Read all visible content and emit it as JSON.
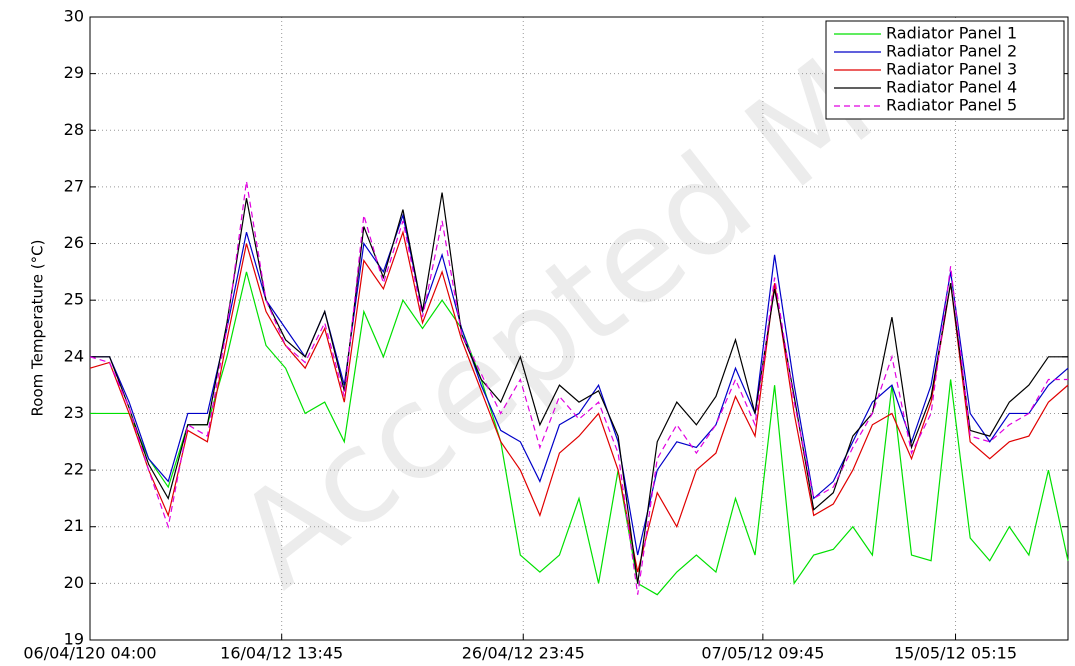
{
  "chart_data": {
    "type": "line",
    "ylabel": "Room Temperature (°C)",
    "watermark": "Accepted M",
    "x": [
      0,
      20,
      40,
      60,
      80,
      100,
      120,
      140,
      160,
      180,
      200,
      220,
      240,
      260,
      280,
      300,
      320,
      340,
      360,
      380,
      400,
      420,
      440,
      460,
      480,
      500,
      520,
      540,
      560,
      580,
      600,
      620,
      640,
      660,
      680,
      700,
      720,
      740,
      760,
      780,
      800,
      820,
      840,
      860,
      880,
      900,
      920,
      940,
      960,
      980,
      1000
    ],
    "xlim": [
      0,
      1000
    ],
    "xticks": [
      {
        "value": 0,
        "label": "06/04/120 04:00"
      },
      {
        "value": 196,
        "label": "16/04/12 13:45"
      },
      {
        "value": 443,
        "label": "26/04/12 23:45"
      },
      {
        "value": 688,
        "label": "07/05/12 09:45"
      },
      {
        "value": 885,
        "label": "15/05/12 05:15"
      }
    ],
    "ylim": [
      19,
      30
    ],
    "yticks": [
      19,
      20,
      21,
      22,
      23,
      24,
      25,
      26,
      27,
      28,
      29,
      30
    ],
    "grid": true,
    "legend": "top-right",
    "series": [
      {
        "name": "Radiator Panel 1",
        "color": "#00e000",
        "dash": false,
        "values": [
          23.0,
          23.0,
          23.0,
          22.2,
          21.7,
          22.8,
          22.8,
          24.0,
          25.5,
          24.2,
          23.8,
          23.0,
          23.2,
          22.5,
          24.8,
          24.0,
          25.0,
          24.5,
          25.0,
          24.5,
          23.6,
          22.5,
          20.5,
          20.2,
          20.5,
          21.5,
          20.0,
          22.0,
          20.0,
          19.8,
          20.2,
          20.5,
          20.2,
          21.5,
          20.5,
          23.5,
          20.0,
          20.5,
          20.6,
          21.0,
          20.5,
          23.5,
          20.5,
          20.4,
          23.6,
          20.8,
          20.4,
          21.0,
          20.5,
          22.0,
          20.4
        ]
      },
      {
        "name": "Radiator Panel 2",
        "color": "#0000c8",
        "dash": false,
        "values": [
          24.0,
          24.0,
          23.2,
          22.2,
          21.8,
          23.0,
          23.0,
          24.5,
          26.2,
          25.0,
          24.5,
          24.0,
          24.8,
          23.5,
          26.0,
          25.5,
          26.5,
          24.8,
          25.8,
          24.5,
          23.5,
          22.7,
          22.5,
          21.8,
          22.8,
          23.0,
          23.5,
          22.5,
          20.5,
          22.0,
          22.5,
          22.4,
          22.8,
          23.8,
          23.0,
          25.8,
          23.5,
          21.5,
          21.8,
          22.5,
          23.2,
          23.5,
          22.5,
          23.5,
          25.5,
          23.0,
          22.5,
          23.0,
          23.0,
          23.5,
          23.8
        ]
      },
      {
        "name": "Radiator Panel 3",
        "color": "#e00000",
        "dash": false,
        "values": [
          23.8,
          23.9,
          23.0,
          22.0,
          21.2,
          22.7,
          22.5,
          24.3,
          26.0,
          24.8,
          24.2,
          23.8,
          24.5,
          23.2,
          25.7,
          25.2,
          26.2,
          24.6,
          25.5,
          24.3,
          23.4,
          22.5,
          22.0,
          21.2,
          22.3,
          22.6,
          23.0,
          22.0,
          20.2,
          21.6,
          21.0,
          22.0,
          22.3,
          23.3,
          22.6,
          25.3,
          23.0,
          21.2,
          21.4,
          22.0,
          22.8,
          23.0,
          22.2,
          23.2,
          25.3,
          22.5,
          22.2,
          22.5,
          22.6,
          23.2,
          23.5
        ]
      },
      {
        "name": "Radiator Panel 4",
        "color": "#000000",
        "dash": false,
        "values": [
          24.0,
          24.0,
          23.1,
          22.1,
          21.5,
          22.8,
          22.8,
          24.6,
          26.8,
          25.0,
          24.3,
          24.0,
          24.8,
          23.4,
          26.3,
          25.4,
          26.6,
          24.8,
          26.9,
          24.4,
          23.6,
          23.2,
          24.0,
          22.8,
          23.5,
          23.2,
          23.4,
          22.6,
          20.0,
          22.5,
          23.2,
          22.8,
          23.3,
          24.3,
          23.0,
          25.2,
          23.3,
          21.3,
          21.6,
          22.6,
          23.0,
          24.7,
          22.4,
          23.3,
          25.3,
          22.7,
          22.6,
          23.2,
          23.5,
          24.0,
          24.0
        ]
      },
      {
        "name": "Radiator Panel 5",
        "color": "#e000e0",
        "dash": true,
        "values": [
          24.0,
          23.9,
          23.1,
          22.0,
          21.0,
          22.8,
          22.6,
          24.5,
          27.1,
          25.0,
          24.2,
          23.9,
          24.6,
          23.3,
          26.5,
          25.3,
          26.4,
          24.7,
          26.4,
          24.4,
          23.7,
          23.0,
          23.6,
          22.4,
          23.3,
          22.9,
          23.2,
          22.3,
          19.8,
          22.2,
          22.8,
          22.3,
          22.8,
          23.6,
          22.8,
          25.4,
          23.2,
          21.5,
          21.7,
          22.4,
          23.0,
          24.0,
          22.3,
          23.0,
          25.6,
          22.6,
          22.5,
          22.8,
          23.0,
          23.6,
          23.6
        ]
      }
    ]
  }
}
